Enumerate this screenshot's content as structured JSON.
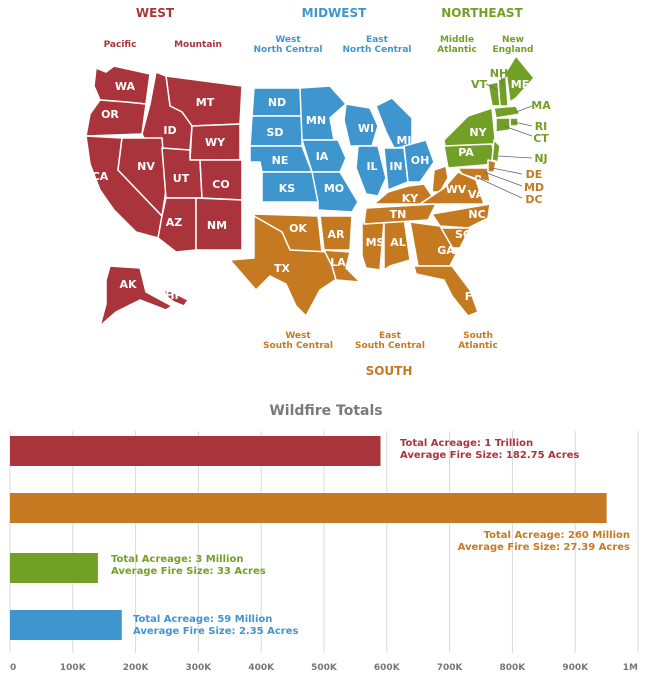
{
  "colors": {
    "west": "#a9343b",
    "south": "#c57a22",
    "northeast": "#72a026",
    "midwest": "#3f96cf",
    "grid": "#d9d9d9",
    "title": "#7a7a7a"
  },
  "map": {
    "regions": [
      {
        "name": "WEST",
        "color": "#a9343b",
        "divisions": [
          {
            "label": "Pacific"
          },
          {
            "label": "Mountain"
          }
        ]
      },
      {
        "name": "MIDWEST",
        "color": "#3f96cf",
        "divisions": [
          {
            "label": "West\nNorth Central"
          },
          {
            "label": "East\nNorth Central"
          }
        ]
      },
      {
        "name": "NORTHEAST",
        "color": "#72a026",
        "divisions": [
          {
            "label": "Middle\nAtlantic"
          },
          {
            "label": "New\nEngland"
          }
        ]
      },
      {
        "name": "SOUTH",
        "color": "#c57a22",
        "divisions": [
          {
            "label": "West\nSouth Central"
          },
          {
            "label": "East\nSouth Central"
          },
          {
            "label": "South\nAtlantic"
          }
        ]
      }
    ],
    "states": [
      "WA",
      "OR",
      "CA",
      "MT",
      "ID",
      "WY",
      "NV",
      "UT",
      "CO",
      "AZ",
      "NM",
      "AK",
      "HI",
      "ND",
      "SD",
      "NE",
      "KS",
      "MN",
      "IA",
      "MO",
      "WI",
      "MI",
      "IL",
      "IN",
      "OH",
      "NY",
      "PA",
      "VT",
      "NH",
      "ME",
      "MA",
      "RI",
      "CT",
      "NJ",
      "DE",
      "MD",
      "DC",
      "KY",
      "TN",
      "MS",
      "AL",
      "WV",
      "VA",
      "NC",
      "SC",
      "GA",
      "FL",
      "OK",
      "AR",
      "TX",
      "LA"
    ]
  },
  "chart_data": {
    "type": "bar",
    "orientation": "horizontal",
    "title": "Wildfire Totals",
    "xlim": [
      0,
      1000000
    ],
    "x_ticks": [
      0,
      100000,
      200000,
      300000,
      400000,
      500000,
      600000,
      700000,
      800000,
      900000,
      1000000
    ],
    "x_tick_labels": [
      "0",
      "100K",
      "200K",
      "300K",
      "400K",
      "500K",
      "600K",
      "700K",
      "800K",
      "900K",
      "1M"
    ],
    "grid": true,
    "bars": [
      {
        "value": 590000,
        "color": "#a9343b",
        "annotation": [
          "Total Acreage: 1 Trillion",
          "Average Fire Size: 182.75 Acres"
        ]
      },
      {
        "value": 950000,
        "color": "#c57a22",
        "annotation": [
          "Total Acreage: 260 Million",
          "Average Fire Size: 27.39 Acres"
        ]
      },
      {
        "value": 140000,
        "color": "#72a026",
        "annotation": [
          "Total Acreage: 3 Million",
          "Average Fire Size: 33 Acres"
        ]
      },
      {
        "value": 178000,
        "color": "#3f96cf",
        "annotation": [
          "Total Acreage: 59 Million",
          "Average Fire Size: 2.35 Acres"
        ]
      }
    ]
  }
}
